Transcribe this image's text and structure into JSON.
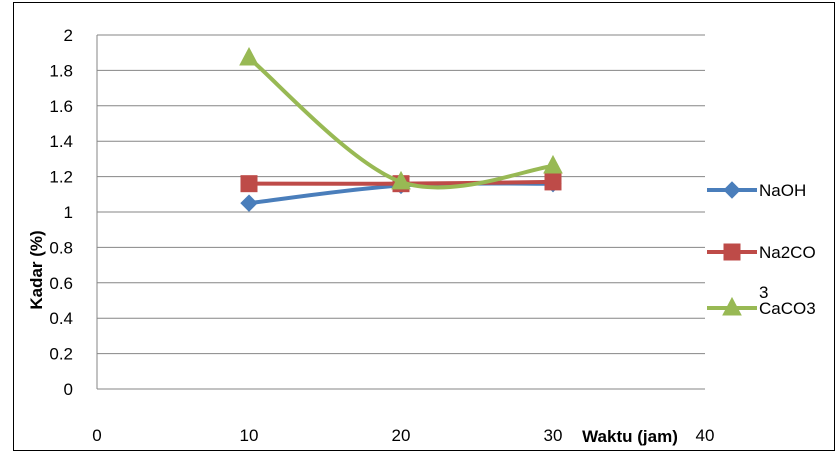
{
  "chart_data": {
    "type": "line",
    "xlabel": "Waktu (jam)",
    "ylabel": "Kadar (%)",
    "xlim": [
      0,
      40
    ],
    "ylim": [
      0,
      2
    ],
    "xticks": [
      "0",
      "10",
      "20",
      "30",
      "40"
    ],
    "yticks": [
      "0",
      "0.2",
      "0.4",
      "0.6",
      "0.8",
      "1",
      "1.2",
      "1.4",
      "1.6",
      "1.8",
      "2"
    ],
    "x": [
      10,
      20,
      30
    ],
    "grid": "horizontal",
    "legend_position": "right",
    "series": [
      {
        "name": "NaOH",
        "name_lines": [
          "NaOH"
        ],
        "values": [
          1.05,
          1.15,
          1.16
        ],
        "color": "#4A7EBB",
        "marker": "diamond",
        "smooth": true
      },
      {
        "name": "Na2CO3",
        "name_lines": [
          "Na2CO",
          "3"
        ],
        "values": [
          1.16,
          1.16,
          1.17
        ],
        "color": "#BE4B48",
        "marker": "square",
        "smooth": true
      },
      {
        "name": "CaCO3",
        "name_lines": [
          "CaCO3"
        ],
        "values": [
          1.87,
          1.17,
          1.26
        ],
        "color": "#98B954",
        "marker": "triangle",
        "smooth": true
      }
    ]
  }
}
